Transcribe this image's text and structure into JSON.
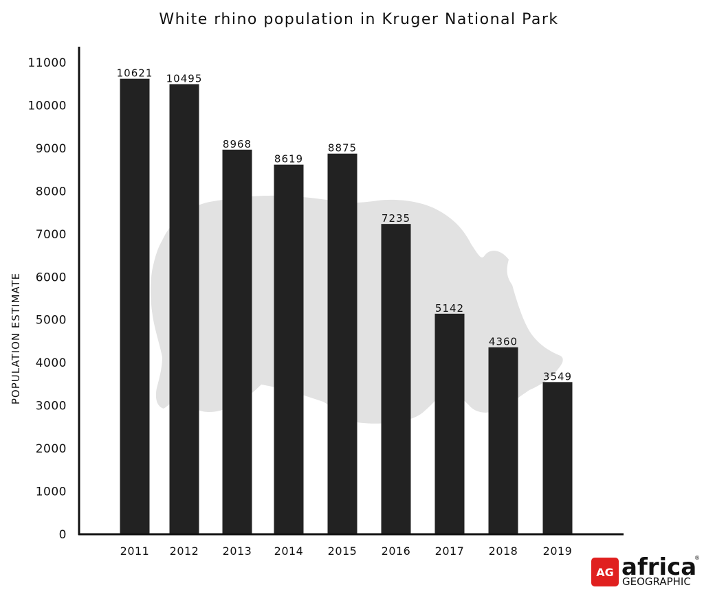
{
  "chart_data": {
    "type": "bar",
    "title": "White rhino population in Kruger National Park",
    "ylabel": "POPULATION ESTIMATE",
    "xlabel": "",
    "categories": [
      "2011",
      "2012",
      "2013",
      "2014",
      "2015",
      "2016",
      "2017",
      "2018",
      "2019"
    ],
    "values": [
      10621,
      10495,
      8968,
      8619,
      8875,
      7235,
      5142,
      4360,
      3549
    ],
    "data_labels": [
      "10621",
      "10495",
      "8968",
      "8619",
      "8875",
      "7235",
      "5142",
      "4360",
      "3549"
    ],
    "ylim": [
      0,
      11000
    ],
    "yticks": [
      "0",
      "1000",
      "2000",
      "3000",
      "4000",
      "5000",
      "6000",
      "7000",
      "8000",
      "9000",
      "10000",
      "11000"
    ],
    "grid": false,
    "bar_color": "#222222",
    "background_graphic": "rhino-silhouette"
  },
  "logo": {
    "badge": "AG",
    "name": "africa",
    "sub": "GEOGRAPHIC",
    "reg": "®",
    "badge_color": "#e0201f"
  }
}
